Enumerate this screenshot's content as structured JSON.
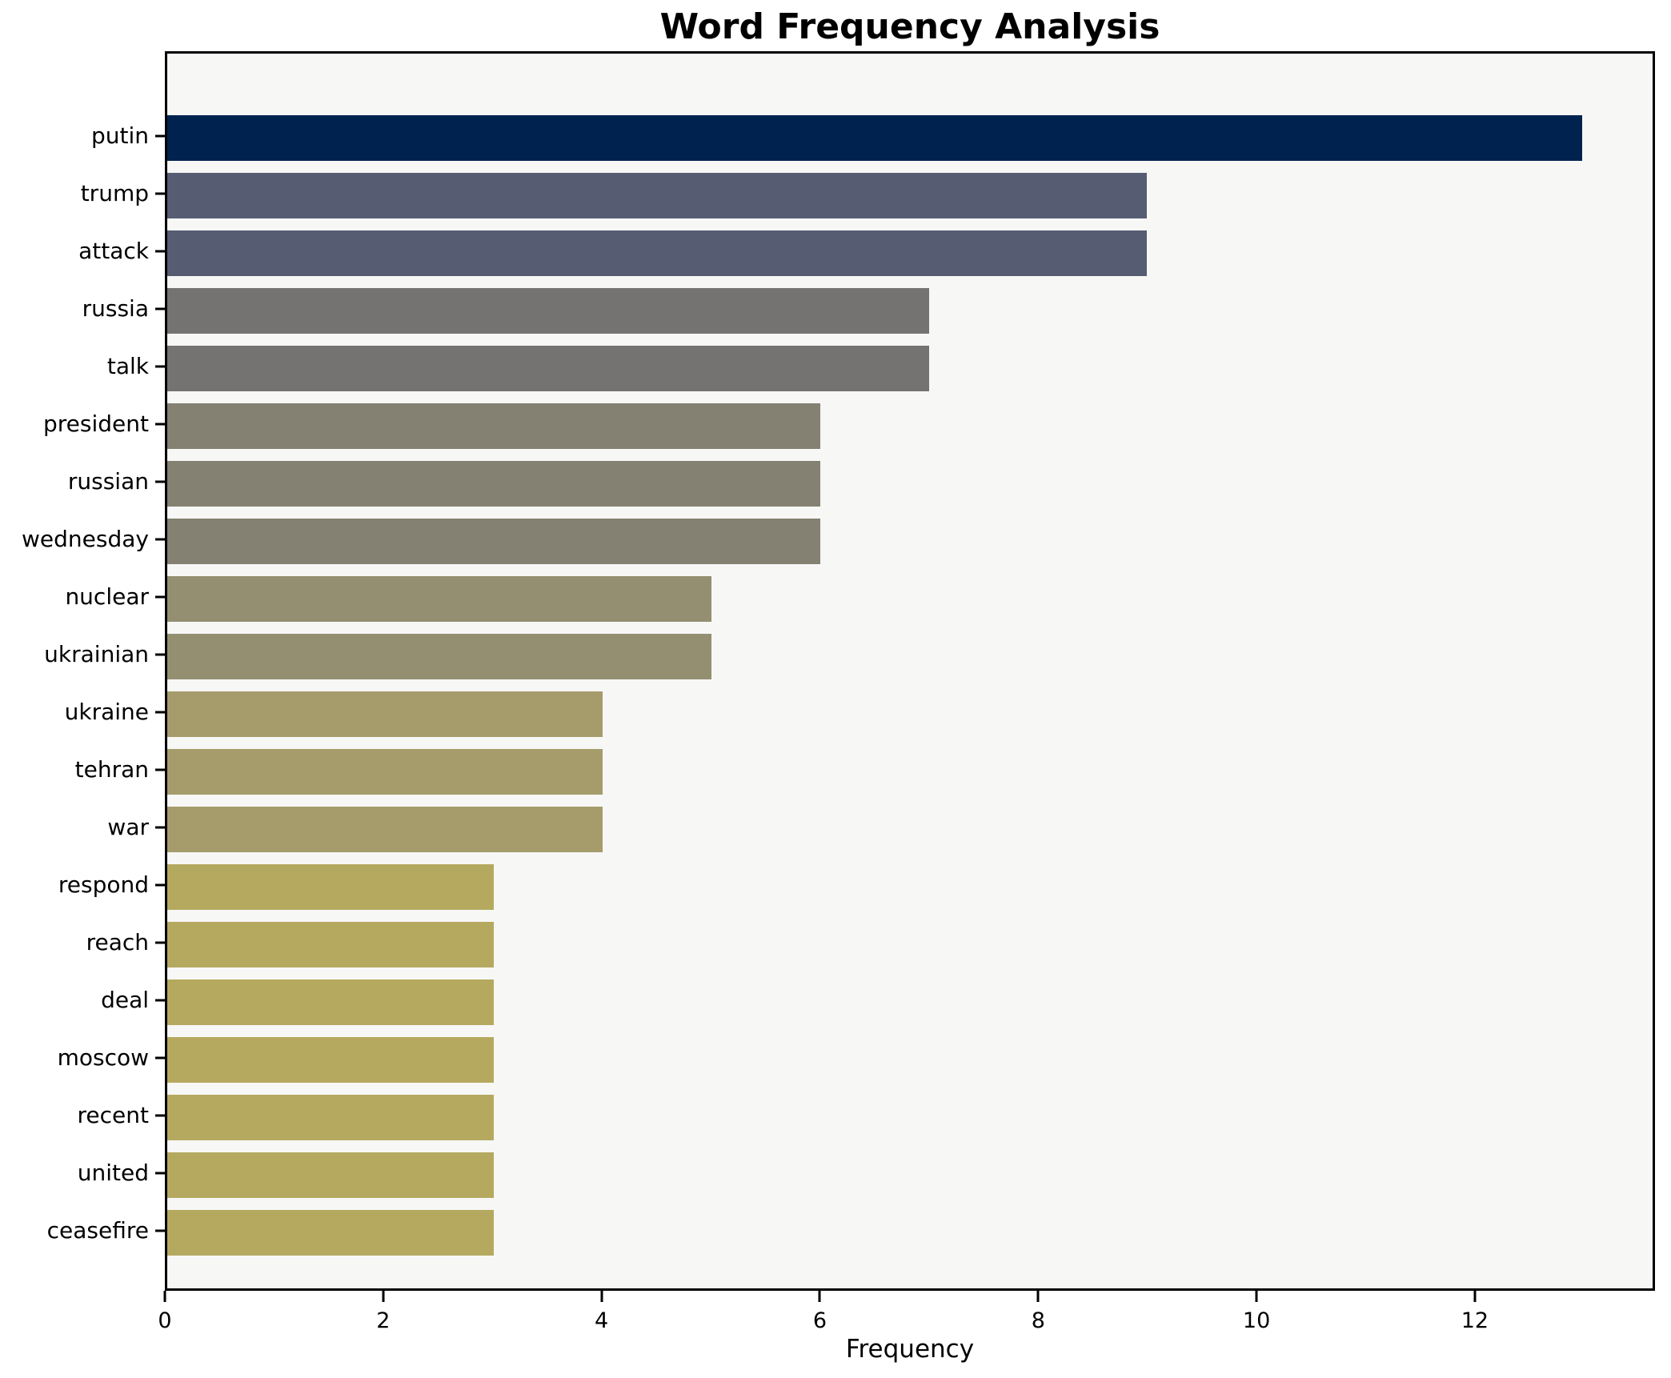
{
  "chart_data": {
    "type": "bar",
    "orientation": "horizontal",
    "title": "Word Frequency Analysis",
    "xlabel": "Frequency",
    "ylabel": "",
    "categories": [
      "putin",
      "trump",
      "attack",
      "russia",
      "talk",
      "president",
      "russian",
      "wednesday",
      "nuclear",
      "ukrainian",
      "ukraine",
      "tehran",
      "war",
      "respond",
      "reach",
      "deal",
      "moscow",
      "recent",
      "united",
      "ceasefire"
    ],
    "values": [
      13,
      9,
      9,
      7,
      7,
      6,
      6,
      6,
      5,
      5,
      4,
      4,
      4,
      3,
      3,
      3,
      3,
      3,
      3,
      3
    ],
    "bar_colors": [
      "#00224e",
      "#565d73",
      "#565d73",
      "#757371",
      "#757371",
      "#848172",
      "#848172",
      "#848172",
      "#948f71",
      "#948f71",
      "#a69c6b",
      "#a69c6b",
      "#a69c6b",
      "#b5a95f",
      "#b5a95f",
      "#b5a95f",
      "#b5a95f",
      "#b5a95f",
      "#b5a95f",
      "#b5a95f"
    ],
    "xticks": [
      0,
      2,
      4,
      6,
      8,
      10,
      12
    ],
    "xlim": [
      0,
      13.65
    ],
    "grid": false,
    "legend_position": "none",
    "plot_background": "#f7f7f6",
    "figure_background": "#ffffff",
    "frame_color": "#000000"
  }
}
